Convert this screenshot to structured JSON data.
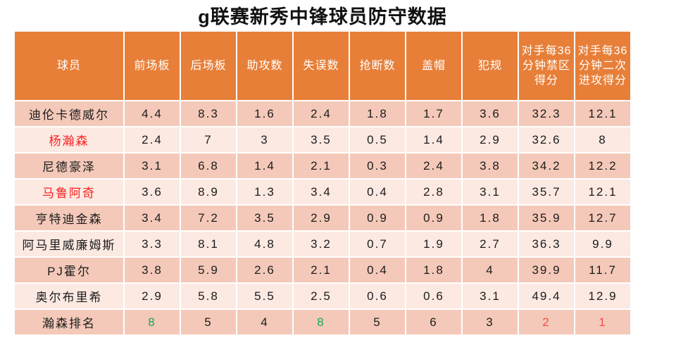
{
  "title": "g联赛新秀中锋球员防守数据",
  "chart_data": {
    "type": "table",
    "title": "g联赛新秀中锋球员防守数据",
    "columns": [
      "球员",
      "前场板",
      "后场板",
      "助攻数",
      "失误数",
      "抢断数",
      "盖帽",
      "犯规",
      "对手每36分钟禁区得分",
      "对手每36分钟二次进攻得分"
    ],
    "rows": [
      {
        "player": "迪伦卡德威尔",
        "values": [
          "4.4",
          "8.3",
          "1.6",
          "2.4",
          "1.8",
          "1.7",
          "3.6",
          "32.3",
          "12.1"
        ]
      },
      {
        "player": "杨瀚森",
        "values": [
          "2.4",
          "7",
          "3",
          "3.5",
          "0.5",
          "1.4",
          "2.9",
          "32.6",
          "8"
        ]
      },
      {
        "player": "尼德豪泽",
        "values": [
          "3.1",
          "6.8",
          "1.4",
          "2.1",
          "0.3",
          "2.4",
          "3.8",
          "34.2",
          "12.2"
        ]
      },
      {
        "player": "马鲁阿奇",
        "values": [
          "3.6",
          "8.9",
          "1.3",
          "3.4",
          "0.4",
          "2.8",
          "3.1",
          "35.7",
          "12.1"
        ]
      },
      {
        "player": "亨特迪金森",
        "values": [
          "3.4",
          "7.2",
          "3.5",
          "2.9",
          "0.9",
          "0.9",
          "1.8",
          "35.9",
          "12.7"
        ]
      },
      {
        "player": "阿马里威廉姆斯",
        "values": [
          "3.3",
          "8.1",
          "4.8",
          "3.2",
          "0.7",
          "1.9",
          "2.7",
          "36.3",
          "9.9"
        ]
      },
      {
        "player": "PJ霍尔",
        "values": [
          "3.8",
          "5.9",
          "2.6",
          "2.1",
          "0.4",
          "1.8",
          "4",
          "39.9",
          "11.7"
        ]
      },
      {
        "player": "奥尔布里希",
        "values": [
          "2.9",
          "5.8",
          "5.5",
          "2.5",
          "0.6",
          "0.6",
          "3.1",
          "49.4",
          "12.9"
        ]
      },
      {
        "player": "瀚森排名",
        "values": [
          "8",
          "5",
          "4",
          "8",
          "5",
          "6",
          "3",
          "2",
          "1"
        ]
      }
    ],
    "highlights": {
      "red_player_names": [
        "杨瀚森",
        "马鲁阿奇"
      ],
      "rank_row_green_values": [
        "前场板:8",
        "失误数:8"
      ],
      "rank_row_red_values": [
        "对手每36分钟禁区得分:2",
        "对手每36分钟二次进攻得分:1"
      ]
    }
  },
  "colors": {
    "header_bg": "#e87f38",
    "header_text": "#ffffff",
    "row_dark": "#f4c9b9",
    "row_light": "#fbe9e2",
    "body_text": "#1c1c1c",
    "red_name": "#fa2121",
    "red_rank": "#f54b4b",
    "green_rank": "#17a84f"
  }
}
